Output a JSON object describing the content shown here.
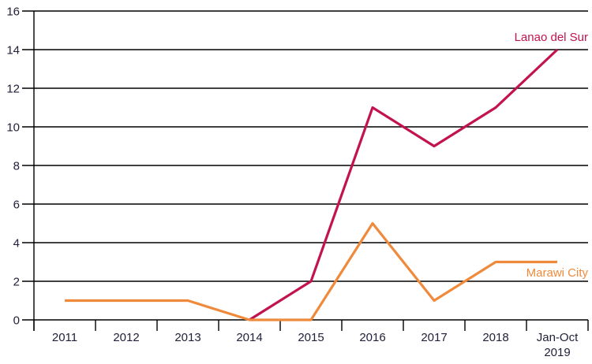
{
  "figure": {
    "background": "#ffffff"
  },
  "chart_data": {
    "type": "line",
    "title": "",
    "xlabel": "",
    "ylabel": "",
    "categories": [
      "2011",
      "2012",
      "2013",
      "2014",
      "2015",
      "2016",
      "2017",
      "2018",
      "Jan-Oct\n2019"
    ],
    "series": [
      {
        "name": "Lanao del Sur",
        "color": "#c21350",
        "values": [
          null,
          null,
          null,
          0,
          2,
          11,
          9,
          11,
          14
        ]
      },
      {
        "name": "Marawi City",
        "color": "#ef8a3c",
        "values": [
          1,
          1,
          1,
          0,
          0,
          5,
          1,
          3,
          3
        ]
      }
    ],
    "ylim": [
      0,
      16
    ],
    "ytick_step": 2,
    "yticks": [
      0,
      2,
      4,
      6,
      8,
      10,
      12,
      14,
      16
    ],
    "grid": "horizontal-gridlines-on",
    "legend": "series-name-labels-at-line-end",
    "axis_color": "#000000",
    "tick_label_color": "#21213b"
  }
}
